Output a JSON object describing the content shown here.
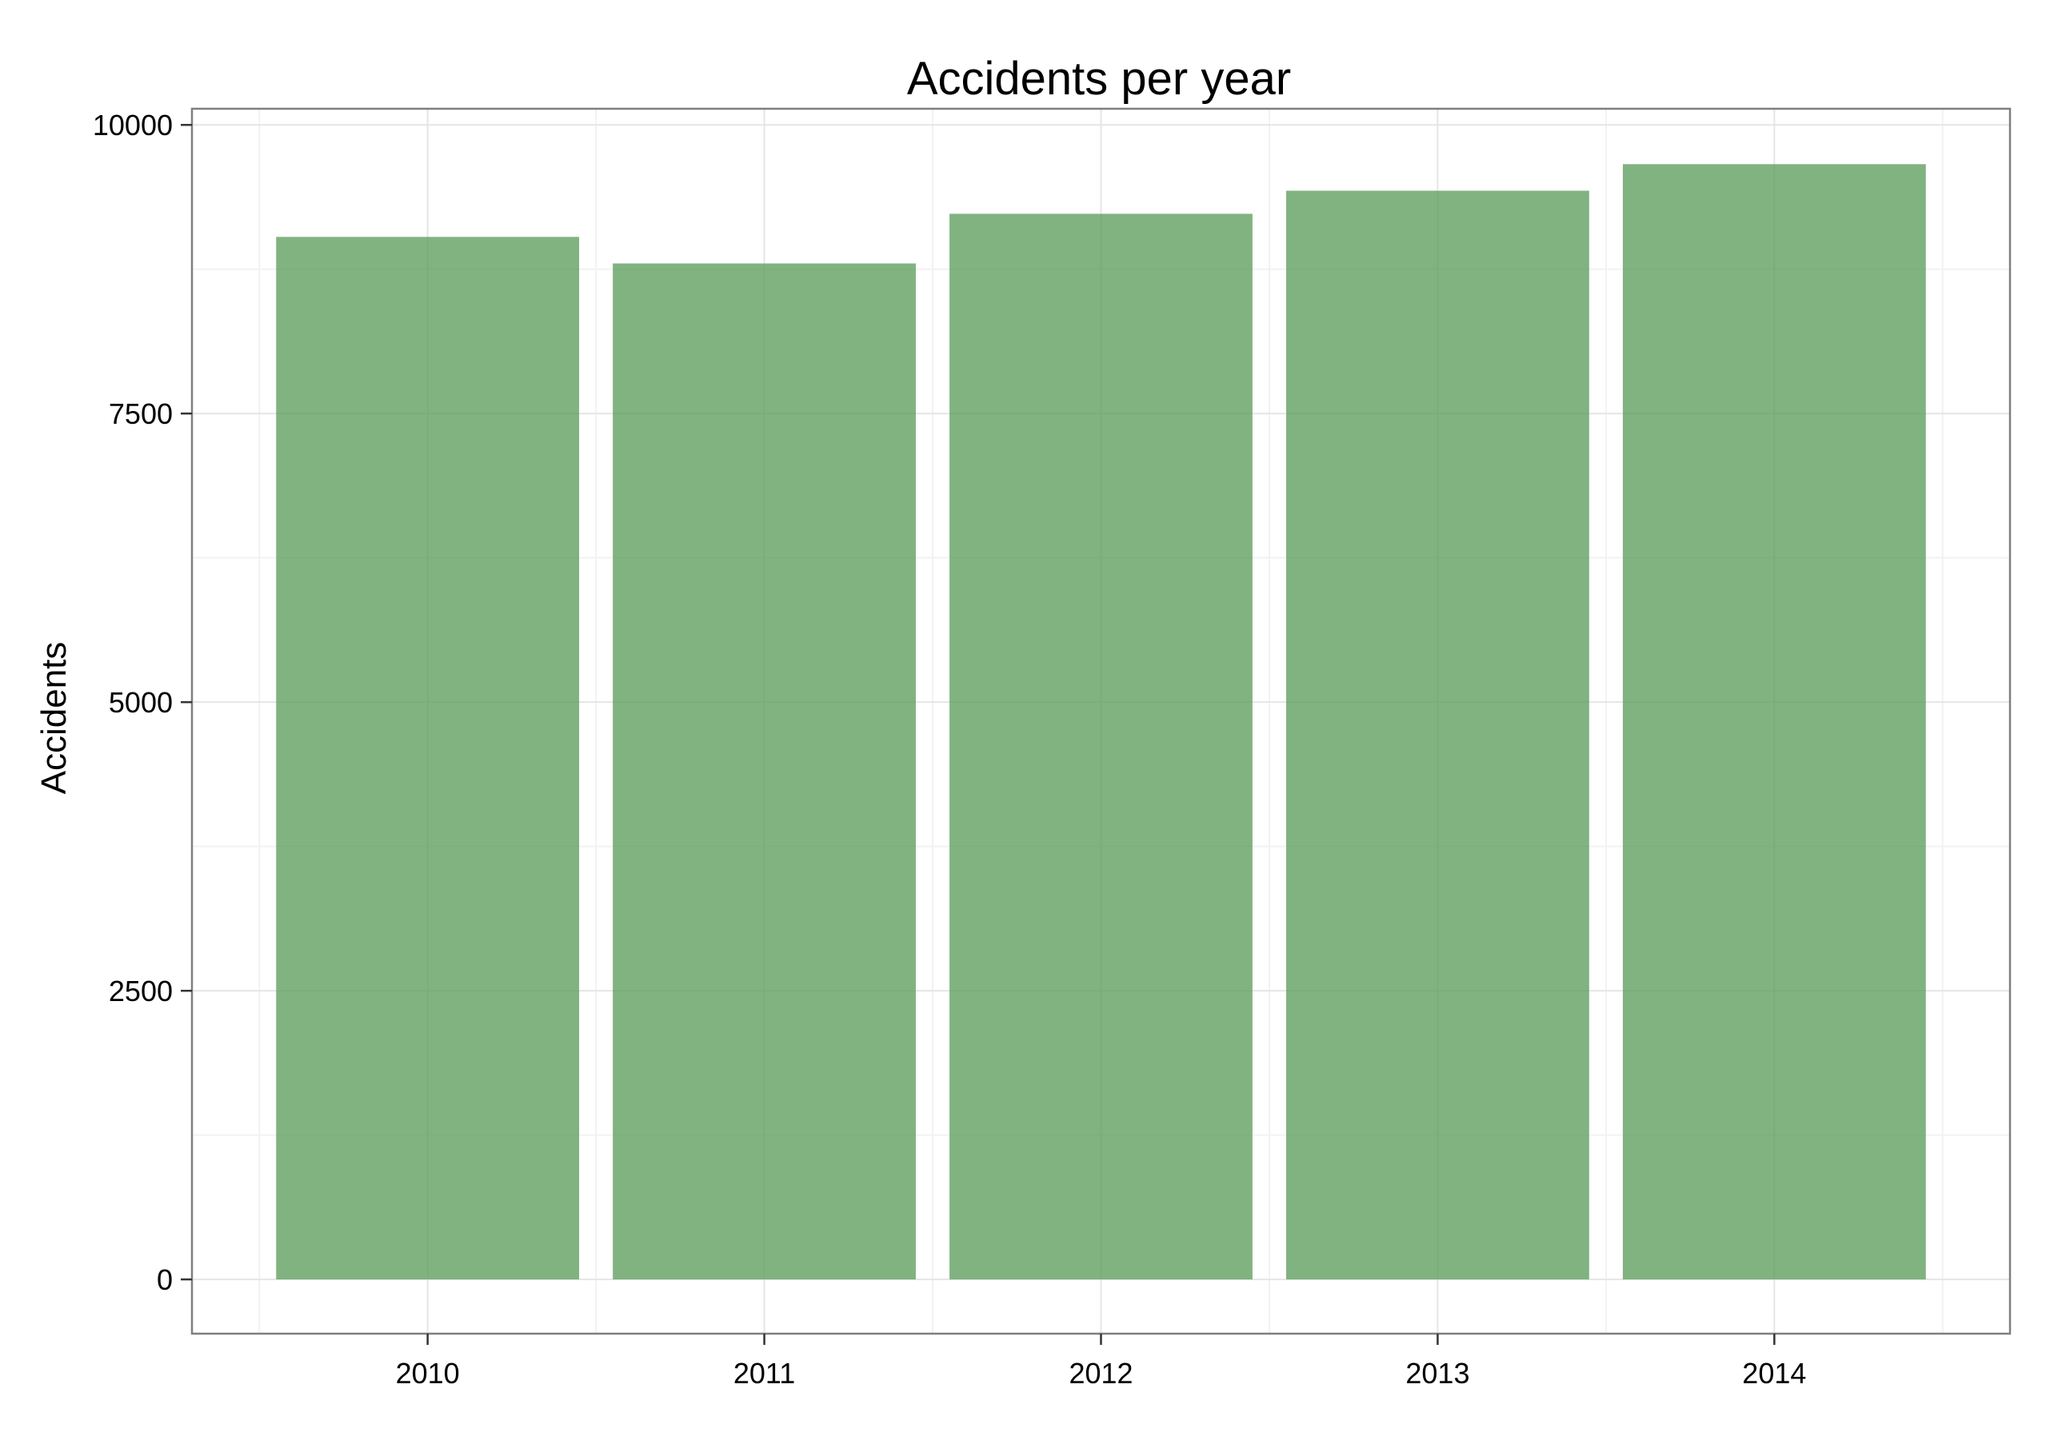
{
  "chart_data": {
    "type": "bar",
    "title": "Accidents per year",
    "xlabel": "",
    "ylabel": "Accidents",
    "categories": [
      "2010",
      "2011",
      "2012",
      "2013",
      "2014"
    ],
    "values": [
      9030,
      8800,
      9230,
      9430,
      9660
    ],
    "ylim": [
      -470,
      10140
    ],
    "yticks": [
      0,
      2500,
      5000,
      7500,
      10000
    ],
    "ytick_labels": [
      "0",
      "2500",
      "5000",
      "7500",
      "10000"
    ],
    "grid": true,
    "legend": "none",
    "bar_color": "#5e9e5e",
    "bar_opacity": 0.78
  }
}
